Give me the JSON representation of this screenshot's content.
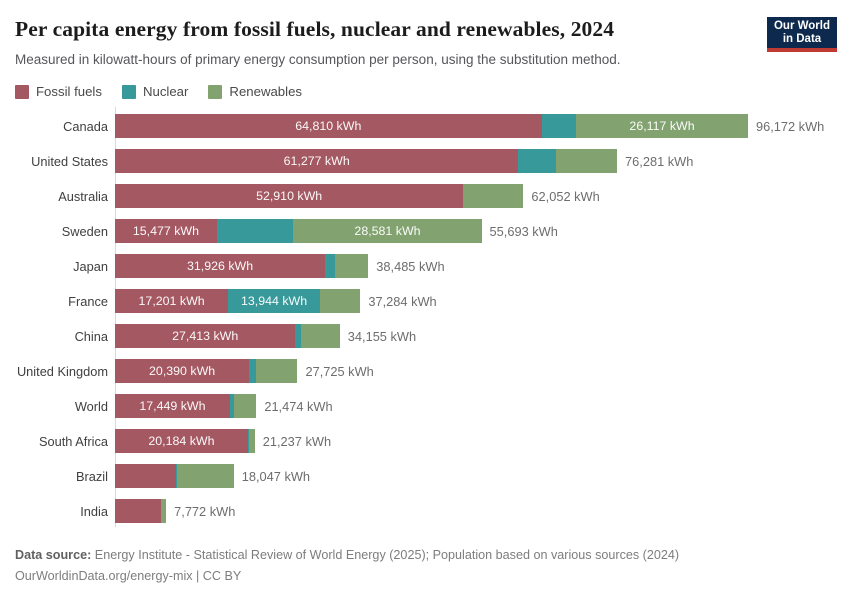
{
  "header": {
    "title": "Per capita energy from fossil fuels, nuclear and renewables, 2024",
    "subtitle": "Measured in kilowatt-hours of primary energy consumption per person, using the substitution method.",
    "logo": {
      "line1": "Our World",
      "line2": "in Data",
      "bg_color": "#0d2a4e",
      "accent_color": "#bf3a32"
    }
  },
  "legend": {
    "items": [
      {
        "key": "fossil",
        "label": "Fossil fuels",
        "color": "#a35862"
      },
      {
        "key": "nuclear",
        "label": "Nuclear",
        "color": "#38999a"
      },
      {
        "key": "renewables",
        "label": "Renewables",
        "color": "#82a270"
      }
    ]
  },
  "chart_data": {
    "type": "bar",
    "stacked": true,
    "orientation": "horizontal",
    "unit": "kWh",
    "xlim": [
      0,
      96172
    ],
    "grid": false,
    "legend_position": "top",
    "series_names": [
      "Fossil fuels",
      "Nuclear",
      "Renewables"
    ],
    "colors": {
      "fossil": "#a35862",
      "nuclear": "#38999a",
      "renewables": "#82a270"
    },
    "note": "nuclear/renewables values without visible labels are estimated from bar segment lengths",
    "rows": [
      {
        "country": "Canada",
        "fossil": 64810,
        "nuclear": 5245,
        "renewables": 26117,
        "total": 96172,
        "fossil_label": "64,810 kWh",
        "nuclear_label": "",
        "renewables_label": "26,117 kWh",
        "total_label": "96,172 kWh"
      },
      {
        "country": "United States",
        "fossil": 61277,
        "nuclear": 5753,
        "renewables": 9251,
        "total": 76281,
        "fossil_label": "61,277 kWh",
        "nuclear_label": "",
        "renewables_label": "",
        "total_label": "76,281 kWh"
      },
      {
        "country": "Australia",
        "fossil": 52910,
        "nuclear": 0,
        "renewables": 9142,
        "total": 62052,
        "fossil_label": "52,910 kWh",
        "nuclear_label": "",
        "renewables_label": "",
        "total_label": "62,052 kWh"
      },
      {
        "country": "Sweden",
        "fossil": 15477,
        "nuclear": 11635,
        "renewables": 28581,
        "total": 55693,
        "fossil_label": "15,477 kWh",
        "nuclear_label": "",
        "renewables_label": "28,581 kWh",
        "total_label": "55,693 kWh"
      },
      {
        "country": "Japan",
        "fossil": 31926,
        "nuclear": 1547,
        "renewables": 5012,
        "total": 38485,
        "fossil_label": "31,926 kWh",
        "nuclear_label": "",
        "renewables_label": "",
        "total_label": "38,485 kWh"
      },
      {
        "country": "France",
        "fossil": 17201,
        "nuclear": 13944,
        "renewables": 6139,
        "total": 37284,
        "fossil_label": "17,201 kWh",
        "nuclear_label": "13,944 kWh",
        "renewables_label": "",
        "total_label": "37,284 kWh"
      },
      {
        "country": "China",
        "fossil": 27413,
        "nuclear": 867,
        "renewables": 5875,
        "total": 34155,
        "fossil_label": "27,413 kWh",
        "nuclear_label": "",
        "renewables_label": "",
        "total_label": "34,155 kWh"
      },
      {
        "country": "United Kingdom",
        "fossil": 20390,
        "nuclear": 1069,
        "renewables": 6266,
        "total": 27725,
        "fossil_label": "20,390 kWh",
        "nuclear_label": "",
        "renewables_label": "",
        "total_label": "27,725 kWh"
      },
      {
        "country": "World",
        "fossil": 17449,
        "nuclear": 687,
        "renewables": 3338,
        "total": 21474,
        "fossil_label": "17,449 kWh",
        "nuclear_label": "",
        "renewables_label": "",
        "total_label": "21,474 kWh"
      },
      {
        "country": "South Africa",
        "fossil": 20184,
        "nuclear": 240,
        "renewables": 813,
        "total": 21237,
        "fossil_label": "20,184 kWh",
        "nuclear_label": "",
        "renewables_label": "",
        "total_label": "21,237 kWh"
      },
      {
        "country": "Brazil",
        "fossil": 9217,
        "nuclear": 246,
        "renewables": 8584,
        "total": 18047,
        "fossil_label": "",
        "nuclear_label": "",
        "renewables_label": "",
        "total_label": "18,047 kWh"
      },
      {
        "country": "India",
        "fossil": 6921,
        "nuclear": 55,
        "renewables": 796,
        "total": 7772,
        "fossil_label": "",
        "nuclear_label": "",
        "renewables_label": "",
        "total_label": "7,772 kWh"
      }
    ]
  },
  "footer": {
    "source_label": "Data source:",
    "source_text": " Energy Institute - Statistical Review of World Energy (2025); Population based on various sources (2024)",
    "link_line": "OurWorldinData.org/energy-mix | CC BY"
  }
}
